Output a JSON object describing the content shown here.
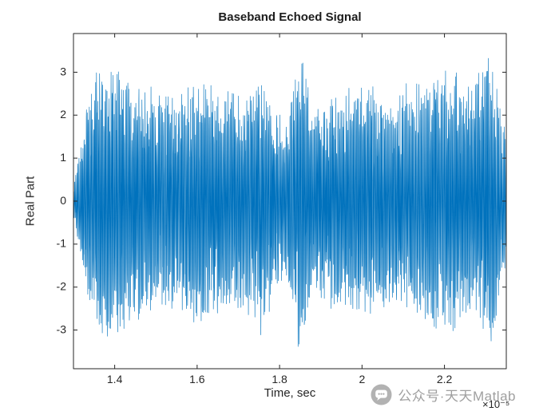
{
  "figure": {
    "title": "Baseband Echoed Signal",
    "xlabel": "Time, sec",
    "ylabel": "Real Part",
    "x_exponent_label": "×10⁻⁵"
  },
  "watermark": {
    "icon": "chat-bubble-icon",
    "text": "公众号·天天Matlab"
  },
  "chart_data": {
    "type": "line",
    "title": "Baseband Echoed Signal",
    "xlabel": "Time, sec",
    "ylabel": "Real Part",
    "x_scale_factor": "1e-5",
    "xlim": [
      1.3,
      2.35
    ],
    "ylim": [
      -3.9,
      3.9
    ],
    "xticks": [
      1.4,
      1.6,
      1.8,
      2,
      2.2
    ],
    "xtick_labels": [
      "1.4",
      "1.6",
      "1.8",
      "2",
      "2.2"
    ],
    "yticks": [
      -3,
      -2,
      -1,
      0,
      1,
      2,
      3
    ],
    "ytick_labels": [
      "-3",
      "-2",
      "-1",
      "0",
      "1",
      "2",
      "3"
    ],
    "grid": false,
    "legend": null,
    "line_color": "#0072BD",
    "axis_color": "#262626",
    "tick_label_color": "#262626",
    "background_color": "#ffffff",
    "signal": {
      "description": "Dense noise-like baseband echoed waveform; peak-amplitude envelope sampled as [time (1e-5 s), |amplitude|] pairs; quieter notch near 1.80-1.83 and tall spikes (~±3.5) near 1.845 and 2.31",
      "num_points": 3200,
      "seed": 42,
      "envelope": [
        [
          1.3,
          0.4
        ],
        [
          1.315,
          1.2
        ],
        [
          1.33,
          2.2
        ],
        [
          1.36,
          3.3
        ],
        [
          1.4,
          3.2
        ],
        [
          1.45,
          2.9
        ],
        [
          1.5,
          2.6
        ],
        [
          1.55,
          2.5
        ],
        [
          1.6,
          2.9
        ],
        [
          1.65,
          2.7
        ],
        [
          1.7,
          2.5
        ],
        [
          1.75,
          2.9
        ],
        [
          1.79,
          2.2
        ],
        [
          1.82,
          1.9
        ],
        [
          1.845,
          3.5
        ],
        [
          1.86,
          3.2
        ],
        [
          1.88,
          2.1
        ],
        [
          1.92,
          2.5
        ],
        [
          1.97,
          2.6
        ],
        [
          2.02,
          2.8
        ],
        [
          2.07,
          2.5
        ],
        [
          2.12,
          2.6
        ],
        [
          2.17,
          3.0
        ],
        [
          2.22,
          3.1
        ],
        [
          2.27,
          2.8
        ],
        [
          2.31,
          3.5
        ],
        [
          2.33,
          2.6
        ],
        [
          2.35,
          1.5
        ]
      ]
    }
  }
}
